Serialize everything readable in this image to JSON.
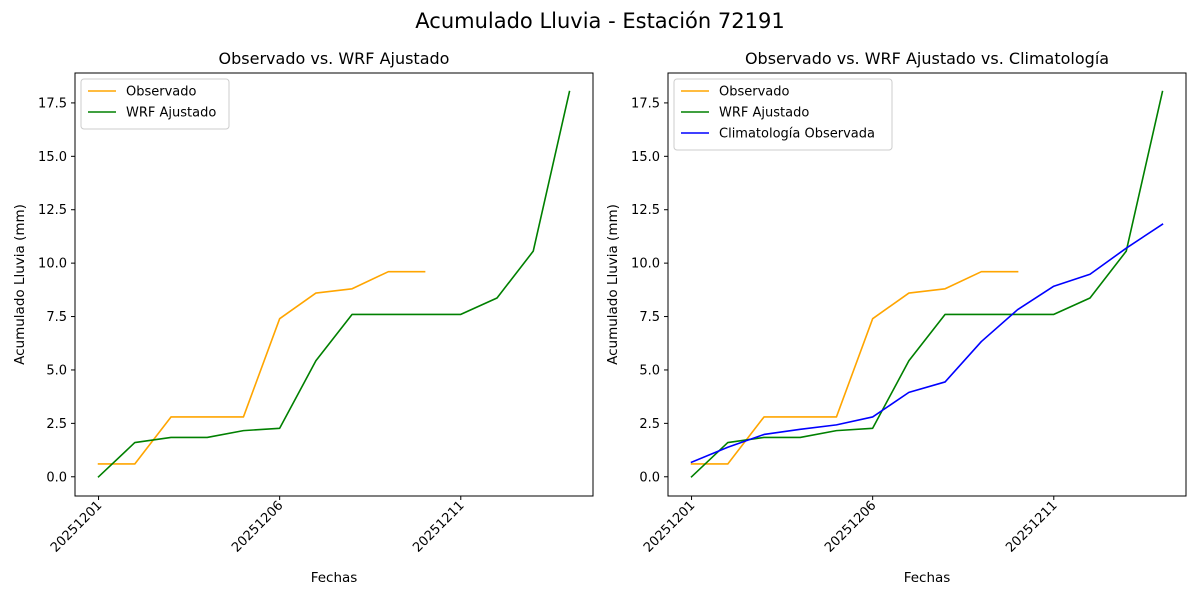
{
  "figure": {
    "suptitle": "Acumulado Lluvia - Estación 72191"
  },
  "chart_data": [
    {
      "type": "line",
      "title": "Observado vs. WRF Ajustado",
      "xlabel": "Fechas",
      "ylabel": "Acumulado Lluvia (mm)",
      "x": [
        "20251201",
        "20251202",
        "20251203",
        "20251204",
        "20251205",
        "20251206",
        "20251207",
        "20251208",
        "20251209",
        "20251210",
        "20251211",
        "20251212",
        "20251213",
        "20251214"
      ],
      "xticks": [
        "20251201",
        "20251206",
        "20251211"
      ],
      "ylim": [
        -0.9,
        18.9
      ],
      "yticks": [
        "0.0",
        "2.5",
        "5.0",
        "7.5",
        "10.0",
        "12.5",
        "15.0",
        "17.5"
      ],
      "grid": false,
      "legend_position": "top-left",
      "series": [
        {
          "name": "Observado",
          "color": "#ffa500",
          "values": [
            0.6,
            0.6,
            2.8,
            2.8,
            2.8,
            7.4,
            8.6,
            8.8,
            9.6,
            9.6,
            null,
            null,
            null,
            null
          ]
        },
        {
          "name": "WRF Ajustado",
          "color": "#008000",
          "values": [
            0.0,
            1.6,
            1.84,
            1.84,
            2.16,
            2.27,
            5.43,
            7.6,
            7.6,
            7.6,
            7.6,
            8.37,
            10.56,
            18.03
          ]
        }
      ]
    },
    {
      "type": "line",
      "title": "Observado vs. WRF Ajustado vs. Climatología",
      "xlabel": "Fechas",
      "ylabel": "Acumulado Lluvia (mm)",
      "x": [
        "20251201",
        "20251202",
        "20251203",
        "20251204",
        "20251205",
        "20251206",
        "20251207",
        "20251208",
        "20251209",
        "20251210",
        "20251211",
        "20251212",
        "20251213",
        "20251214"
      ],
      "xticks": [
        "20251201",
        "20251206",
        "20251211"
      ],
      "ylim": [
        -0.9,
        18.9
      ],
      "yticks": [
        "0.0",
        "2.5",
        "5.0",
        "7.5",
        "10.0",
        "12.5",
        "15.0",
        "17.5"
      ],
      "grid": false,
      "legend_position": "top-left",
      "series": [
        {
          "name": "Observado",
          "color": "#ffa500",
          "values": [
            0.6,
            0.6,
            2.8,
            2.8,
            2.8,
            7.4,
            8.6,
            8.8,
            9.6,
            9.6,
            null,
            null,
            null,
            null
          ]
        },
        {
          "name": "WRF Ajustado",
          "color": "#008000",
          "values": [
            0.0,
            1.6,
            1.84,
            1.84,
            2.16,
            2.27,
            5.43,
            7.6,
            7.6,
            7.6,
            7.6,
            8.37,
            10.56,
            18.03
          ]
        },
        {
          "name": "Climatología Observada",
          "color": "#0000ff",
          "values": [
            0.68,
            1.38,
            1.98,
            2.22,
            2.43,
            2.8,
            3.95,
            4.44,
            6.33,
            7.82,
            8.92,
            9.48,
            10.7,
            11.82
          ]
        }
      ]
    }
  ]
}
